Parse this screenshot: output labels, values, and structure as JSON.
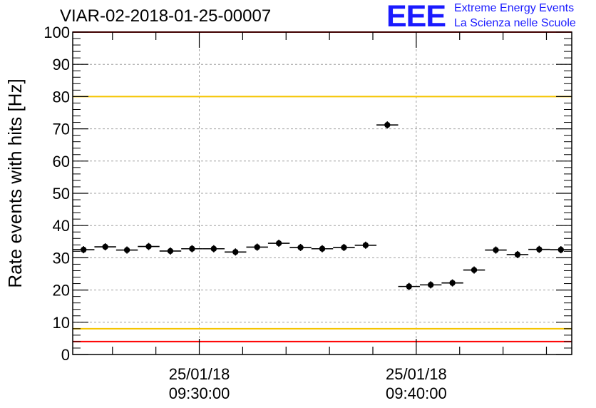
{
  "header": {
    "title": "VIAR-02-2018-01-25-00007",
    "logo_text": "EEE",
    "logo_line1": "Extreme Energy Events",
    "logo_line2": "La Scienza nelle Scuole"
  },
  "colors": {
    "logo": "#1a1aff",
    "limit_red": "#ff0000",
    "limit_yellow": "#f5c400",
    "points": "#000000",
    "grid": "#a0a0a0"
  },
  "chart_data": {
    "type": "scatter",
    "title": "VIAR-02-2018-01-25-00007",
    "xlabel": "",
    "ylabel": "Rate events with hits [Hz]",
    "ylim": [
      0,
      100
    ],
    "yticks": [
      0,
      10,
      20,
      30,
      40,
      50,
      60,
      70,
      80,
      90,
      100
    ],
    "x_axis": "time",
    "x_unit": "minutes after 09:22 on 25/01/18",
    "xlim": [
      0,
      23
    ],
    "xtick_values": [
      5.833,
      15.833
    ],
    "xtick_labels": [
      [
        "25/01/18",
        "09:30:00"
      ],
      [
        "25/01/18",
        "09:40:00"
      ]
    ],
    "grid": true,
    "bin_width_minutes": 1,
    "points": [
      {
        "x": 0.5,
        "y": 32.5
      },
      {
        "x": 1.5,
        "y": 33.4
      },
      {
        "x": 2.5,
        "y": 32.4
      },
      {
        "x": 3.5,
        "y": 33.5
      },
      {
        "x": 4.5,
        "y": 32.1
      },
      {
        "x": 5.5,
        "y": 32.8
      },
      {
        "x": 6.5,
        "y": 32.8
      },
      {
        "x": 7.5,
        "y": 31.8
      },
      {
        "x": 8.5,
        "y": 33.3
      },
      {
        "x": 9.5,
        "y": 34.5
      },
      {
        "x": 10.5,
        "y": 33.2
      },
      {
        "x": 11.5,
        "y": 32.8
      },
      {
        "x": 12.5,
        "y": 33.2
      },
      {
        "x": 13.5,
        "y": 33.9
      },
      {
        "x": 14.5,
        "y": 71.2
      },
      {
        "x": 15.5,
        "y": 21.1
      },
      {
        "x": 16.5,
        "y": 21.6
      },
      {
        "x": 17.5,
        "y": 22.2
      },
      {
        "x": 18.5,
        "y": 26.2
      },
      {
        "x": 19.5,
        "y": 32.4
      },
      {
        "x": 20.5,
        "y": 31.0
      },
      {
        "x": 21.5,
        "y": 32.6
      },
      {
        "x": 22.5,
        "y": 32.5
      }
    ],
    "reference_lines": [
      {
        "y": 100,
        "color": "red"
      },
      {
        "y": 80,
        "color": "yellow"
      },
      {
        "y": 8,
        "color": "yellow"
      },
      {
        "y": 4,
        "color": "red"
      }
    ]
  }
}
